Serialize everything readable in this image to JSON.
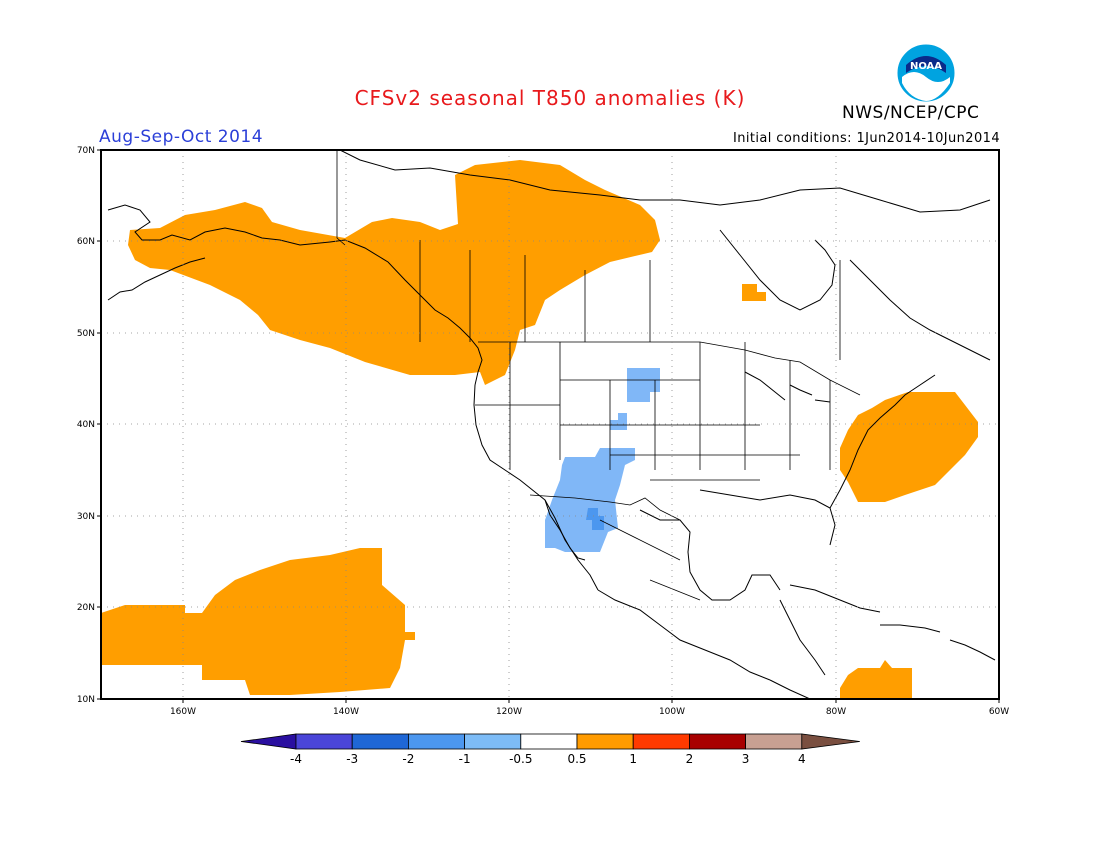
{
  "title": "CFSv2 seasonal T850 anomalies (K)",
  "credit": "NWS/NCEP/CPC",
  "logo_text": "NOAA",
  "season_label": "Aug-Sep-Oct 2014",
  "initial_conditions": "Initial conditions: 1Jun2014-10Jun2014",
  "lat_labels": [
    "70N",
    "60N",
    "50N",
    "40N",
    "30N",
    "20N",
    "10N"
  ],
  "lon_labels": [
    "160W",
    "140W",
    "120W",
    "100W",
    "80W",
    "60W"
  ],
  "colorbar": {
    "labels": [
      "-4",
      "-3",
      "-2",
      "-1",
      "-0.5",
      "0.5",
      "1",
      "2",
      "3",
      "4"
    ],
    "colors": [
      "#2a0fa0",
      "#4a45d8",
      "#1f67d6",
      "#4c97ef",
      "#7dbcf7",
      "#ffffff",
      "#ff9b00",
      "#ff3a00",
      "#a80000",
      "#c8a092",
      "#7a4f40"
    ]
  },
  "anomaly_colors": {
    "warm": "#ff9e00",
    "cool_light": "#80b7f7",
    "cool_mid": "#4c97ef"
  }
}
